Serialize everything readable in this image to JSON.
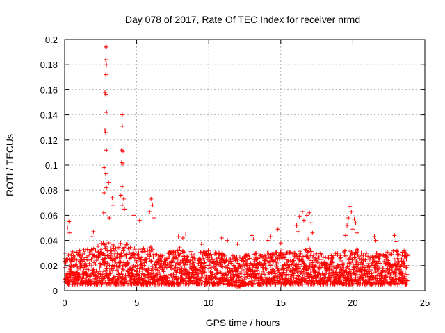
{
  "chart_data": {
    "type": "scatter",
    "title": "Day 078 of 2017, Rate Of TEC Index for receiver nrmd",
    "xlabel": "GPS time / hours",
    "ylabel": "ROTI / TECUs",
    "xlim": [
      0,
      25
    ],
    "ylim": [
      0,
      0.2
    ],
    "xticks": [
      0,
      5,
      10,
      15,
      20,
      25
    ],
    "yticks": [
      0,
      0.02,
      0.04,
      0.06,
      0.08,
      0.1,
      0.12,
      0.14,
      0.16,
      0.18,
      0.2
    ],
    "grid": true,
    "marker": "+",
    "color": "#ff0000",
    "baseline_band": [
      {
        "x": 0.0,
        "min": 0.005,
        "max": 0.03
      },
      {
        "x": 1.0,
        "min": 0.005,
        "max": 0.032
      },
      {
        "x": 2.0,
        "min": 0.005,
        "max": 0.035
      },
      {
        "x": 3.0,
        "min": 0.005,
        "max": 0.04
      },
      {
        "x": 4.0,
        "min": 0.005,
        "max": 0.04
      },
      {
        "x": 5.0,
        "min": 0.005,
        "max": 0.035
      },
      {
        "x": 6.0,
        "min": 0.005,
        "max": 0.035
      },
      {
        "x": 7.0,
        "min": 0.005,
        "max": 0.03
      },
      {
        "x": 8.0,
        "min": 0.005,
        "max": 0.035
      },
      {
        "x": 9.0,
        "min": 0.005,
        "max": 0.03
      },
      {
        "x": 10.0,
        "min": 0.005,
        "max": 0.032
      },
      {
        "x": 11.0,
        "min": 0.005,
        "max": 0.03
      },
      {
        "x": 12.0,
        "min": 0.003,
        "max": 0.028
      },
      {
        "x": 13.0,
        "min": 0.005,
        "max": 0.03
      },
      {
        "x": 14.0,
        "min": 0.005,
        "max": 0.03
      },
      {
        "x": 15.0,
        "min": 0.005,
        "max": 0.033
      },
      {
        "x": 16.0,
        "min": 0.005,
        "max": 0.03
      },
      {
        "x": 17.0,
        "min": 0.005,
        "max": 0.035
      },
      {
        "x": 18.0,
        "min": 0.005,
        "max": 0.028
      },
      {
        "x": 19.0,
        "min": 0.005,
        "max": 0.03
      },
      {
        "x": 20.0,
        "min": 0.005,
        "max": 0.035
      },
      {
        "x": 21.0,
        "min": 0.005,
        "max": 0.03
      },
      {
        "x": 22.0,
        "min": 0.005,
        "max": 0.03
      },
      {
        "x": 23.0,
        "min": 0.005,
        "max": 0.032
      },
      {
        "x": 23.8,
        "min": 0.005,
        "max": 0.032
      }
    ],
    "notable_points": [
      {
        "x": 2.85,
        "y": 0.194
      },
      {
        "x": 2.9,
        "y": 0.194
      },
      {
        "x": 2.85,
        "y": 0.184
      },
      {
        "x": 2.9,
        "y": 0.18
      },
      {
        "x": 2.85,
        "y": 0.172
      },
      {
        "x": 2.8,
        "y": 0.158
      },
      {
        "x": 2.85,
        "y": 0.156
      },
      {
        "x": 2.9,
        "y": 0.142
      },
      {
        "x": 2.8,
        "y": 0.128
      },
      {
        "x": 2.85,
        "y": 0.126
      },
      {
        "x": 2.9,
        "y": 0.112
      },
      {
        "x": 2.75,
        "y": 0.098
      },
      {
        "x": 2.85,
        "y": 0.093
      },
      {
        "x": 3.05,
        "y": 0.086
      },
      {
        "x": 2.9,
        "y": 0.082
      },
      {
        "x": 2.75,
        "y": 0.078
      },
      {
        "x": 4.0,
        "y": 0.14
      },
      {
        "x": 4.0,
        "y": 0.131
      },
      {
        "x": 3.95,
        "y": 0.112
      },
      {
        "x": 4.05,
        "y": 0.111
      },
      {
        "x": 3.95,
        "y": 0.102
      },
      {
        "x": 4.05,
        "y": 0.101
      },
      {
        "x": 4.0,
        "y": 0.083
      },
      {
        "x": 3.9,
        "y": 0.076
      },
      {
        "x": 4.1,
        "y": 0.073
      },
      {
        "x": 4.0,
        "y": 0.068
      },
      {
        "x": 4.15,
        "y": 0.065
      },
      {
        "x": 3.3,
        "y": 0.074
      },
      {
        "x": 3.35,
        "y": 0.068
      },
      {
        "x": 2.7,
        "y": 0.062
      },
      {
        "x": 3.1,
        "y": 0.058
      },
      {
        "x": 6.0,
        "y": 0.073
      },
      {
        "x": 6.1,
        "y": 0.068
      },
      {
        "x": 5.9,
        "y": 0.063
      },
      {
        "x": 6.2,
        "y": 0.058
      },
      {
        "x": 4.8,
        "y": 0.06
      },
      {
        "x": 5.2,
        "y": 0.056
      },
      {
        "x": 0.3,
        "y": 0.055
      },
      {
        "x": 0.2,
        "y": 0.05
      },
      {
        "x": 0.35,
        "y": 0.046
      },
      {
        "x": 2.0,
        "y": 0.047
      },
      {
        "x": 1.9,
        "y": 0.043
      },
      {
        "x": 7.9,
        "y": 0.043
      },
      {
        "x": 8.2,
        "y": 0.042
      },
      {
        "x": 8.4,
        "y": 0.045
      },
      {
        "x": 9.5,
        "y": 0.037
      },
      {
        "x": 10.9,
        "y": 0.042
      },
      {
        "x": 11.3,
        "y": 0.04
      },
      {
        "x": 12.0,
        "y": 0.037
      },
      {
        "x": 13.0,
        "y": 0.044
      },
      {
        "x": 13.1,
        "y": 0.041
      },
      {
        "x": 14.1,
        "y": 0.04
      },
      {
        "x": 14.3,
        "y": 0.043
      },
      {
        "x": 14.8,
        "y": 0.049
      },
      {
        "x": 15.0,
        "y": 0.038
      },
      {
        "x": 16.1,
        "y": 0.052
      },
      {
        "x": 16.3,
        "y": 0.059
      },
      {
        "x": 16.5,
        "y": 0.063
      },
      {
        "x": 16.6,
        "y": 0.056
      },
      {
        "x": 16.8,
        "y": 0.06
      },
      {
        "x": 17.0,
        "y": 0.062
      },
      {
        "x": 17.1,
        "y": 0.054
      },
      {
        "x": 16.2,
        "y": 0.047
      },
      {
        "x": 17.2,
        "y": 0.046
      },
      {
        "x": 16.9,
        "y": 0.041
      },
      {
        "x": 19.8,
        "y": 0.067
      },
      {
        "x": 19.9,
        "y": 0.063
      },
      {
        "x": 19.7,
        "y": 0.058
      },
      {
        "x": 20.1,
        "y": 0.057
      },
      {
        "x": 20.2,
        "y": 0.054
      },
      {
        "x": 19.6,
        "y": 0.052
      },
      {
        "x": 20.0,
        "y": 0.049
      },
      {
        "x": 20.3,
        "y": 0.046
      },
      {
        "x": 19.5,
        "y": 0.044
      },
      {
        "x": 21.5,
        "y": 0.043
      },
      {
        "x": 21.6,
        "y": 0.04
      },
      {
        "x": 22.9,
        "y": 0.044
      },
      {
        "x": 23.0,
        "y": 0.039
      }
    ]
  }
}
